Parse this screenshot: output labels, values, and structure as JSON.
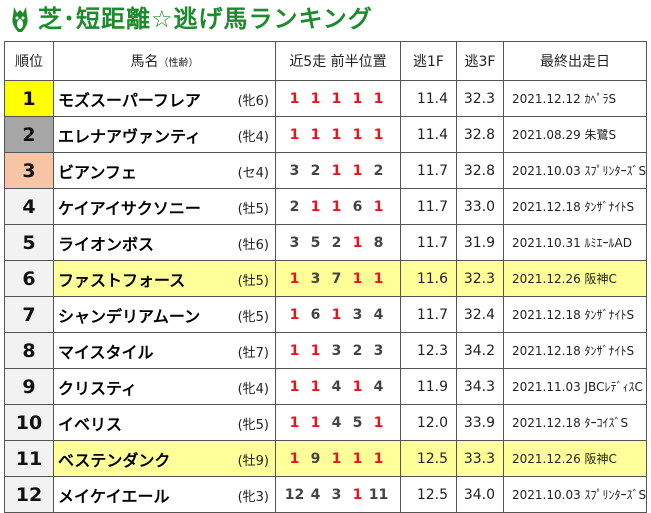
{
  "title": "芝･短距離☆逃げ馬ランキング",
  "colors": {
    "title_green": "#1e8a2e",
    "highlight": "#ffff99",
    "rank1": "#ffff00",
    "rank2": "#a6a6a6",
    "rank3": "#f8c4a6",
    "red": "#e8141e"
  },
  "headers": {
    "rank": "順位",
    "name": "馬名",
    "name_note": "（性齢）",
    "positions": "近5走 前半位置",
    "last_first_f": "逃1F",
    "last_3f": "逃3F",
    "last_race": "最終出走日"
  },
  "rows": [
    {
      "rank": "1",
      "name": "モズスーパーフレア",
      "sex": "(牝6)",
      "positions": [
        "1",
        "1",
        "1",
        "1",
        "1"
      ],
      "f1": "11.4",
      "f3": "32.3",
      "race": "2021.12.12 ｶﾍﾟﾗS",
      "highlight": false
    },
    {
      "rank": "2",
      "name": "エレナアヴァンティ",
      "sex": "(牝4)",
      "positions": [
        "1",
        "1",
        "1",
        "1",
        "1"
      ],
      "f1": "11.4",
      "f3": "32.8",
      "race": "2021.08.29 朱鷺S",
      "highlight": false
    },
    {
      "rank": "3",
      "name": "ビアンフェ",
      "sex": "(セ4)",
      "positions": [
        "3",
        "2",
        "1",
        "1",
        "2"
      ],
      "f1": "11.7",
      "f3": "32.8",
      "race": "2021.10.03 ｽﾌﾟﾘﾝﾀｰｽﾞS",
      "highlight": false
    },
    {
      "rank": "4",
      "name": "ケイアイサクソニー",
      "sex": "(牡5)",
      "positions": [
        "2",
        "1",
        "1",
        "6",
        "1"
      ],
      "f1": "11.7",
      "f3": "33.0",
      "race": "2021.12.18 ﾀﾝｻﾞﾅｲﾄS",
      "highlight": false
    },
    {
      "rank": "5",
      "name": "ライオンボス",
      "sex": "(牡6)",
      "positions": [
        "3",
        "5",
        "2",
        "1",
        "8"
      ],
      "f1": "11.7",
      "f3": "31.9",
      "race": "2021.10.31 ﾙﾐｴｰﾙAD",
      "highlight": false
    },
    {
      "rank": "6",
      "name": "ファストフォース",
      "sex": "(牡5)",
      "positions": [
        "1",
        "3",
        "7",
        "1",
        "1"
      ],
      "f1": "11.6",
      "f3": "32.3",
      "race": "2021.12.26 阪神C",
      "highlight": true
    },
    {
      "rank": "7",
      "name": "シャンデリアムーン",
      "sex": "(牝5)",
      "positions": [
        "1",
        "6",
        "1",
        "3",
        "4"
      ],
      "f1": "11.7",
      "f3": "32.4",
      "race": "2021.12.18 ﾀﾝｻﾞﾅｲﾄS",
      "highlight": false
    },
    {
      "rank": "8",
      "name": "マイスタイル",
      "sex": "(牡7)",
      "positions": [
        "1",
        "1",
        "3",
        "2",
        "3"
      ],
      "f1": "12.3",
      "f3": "34.2",
      "race": "2021.12.18 ﾀﾝｻﾞﾅｲﾄS",
      "highlight": false
    },
    {
      "rank": "9",
      "name": "クリスティ",
      "sex": "(牝4)",
      "positions": [
        "1",
        "1",
        "4",
        "1",
        "4"
      ],
      "f1": "11.9",
      "f3": "34.3",
      "race": "2021.11.03 JBCﾚﾃﾞｨｽC",
      "highlight": false
    },
    {
      "rank": "10",
      "name": "イベリス",
      "sex": "(牝5)",
      "positions": [
        "1",
        "1",
        "4",
        "5",
        "1"
      ],
      "f1": "12.0",
      "f3": "33.9",
      "race": "2021.12.18 ﾀｰｺｲｽﾞS",
      "highlight": false
    },
    {
      "rank": "11",
      "name": "ベステンダンク",
      "sex": "(牡9)",
      "positions": [
        "1",
        "9",
        "1",
        "1",
        "1"
      ],
      "f1": "12.5",
      "f3": "33.3",
      "race": "2021.12.26 阪神C",
      "highlight": true
    },
    {
      "rank": "12",
      "name": "メイケイエール",
      "sex": "(牝3)",
      "positions": [
        "12",
        "4",
        "3",
        "1",
        "11"
      ],
      "f1": "12.5",
      "f3": "34.0",
      "race": "2021.10.03 ｽﾌﾟﾘﾝﾀｰｽﾞS",
      "highlight": false
    }
  ]
}
